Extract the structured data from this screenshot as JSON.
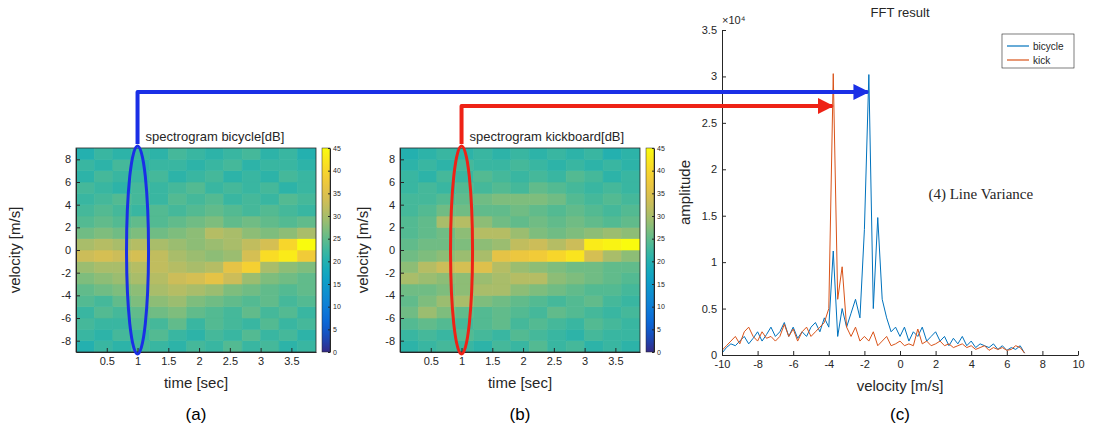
{
  "chart_data": [
    {
      "type": "heatmap",
      "panel": "(a)",
      "title": "spectrogram bicycle[dB]",
      "xlabel": "time [sec]",
      "ylabel": "velocity [m/s]",
      "x": [
        0.15,
        0.45,
        0.75,
        1.05,
        1.35,
        1.65,
        1.95,
        2.25,
        2.55,
        2.85,
        3.15,
        3.45,
        3.75
      ],
      "y": [
        -8.5,
        -7.5,
        -6.5,
        -5.5,
        -4.5,
        -3.5,
        -2.5,
        -1.5,
        -0.5,
        0.5,
        1.5,
        2.5,
        3.5,
        4.5,
        5.5,
        6.5,
        7.5,
        8.5
      ],
      "values": [
        [
          20,
          22,
          21,
          23,
          22,
          21,
          23,
          22,
          24,
          22,
          23,
          21,
          22
        ],
        [
          22,
          21,
          23,
          22,
          24,
          22,
          21,
          23,
          22,
          24,
          22,
          23,
          21
        ],
        [
          23,
          22,
          22,
          24,
          23,
          25,
          22,
          24,
          23,
          22,
          24,
          22,
          23
        ],
        [
          22,
          24,
          23,
          25,
          26,
          27,
          25,
          24,
          23,
          25,
          23,
          24,
          22
        ],
        [
          24,
          23,
          25,
          27,
          28,
          29,
          27,
          26,
          25,
          24,
          25,
          23,
          24
        ],
        [
          25,
          26,
          27,
          28,
          30,
          31,
          30,
          29,
          27,
          26,
          25,
          24,
          25
        ],
        [
          27,
          28,
          29,
          30,
          31,
          33,
          34,
          36,
          33,
          29,
          27,
          26,
          25
        ],
        [
          29,
          30,
          30,
          31,
          32,
          31,
          30,
          31,
          36,
          39,
          30,
          28,
          27
        ],
        [
          33,
          34,
          33,
          34,
          32,
          30,
          29,
          28,
          29,
          34,
          41,
          43,
          38
        ],
        [
          30,
          31,
          30,
          31,
          30,
          29,
          28,
          29,
          30,
          32,
          34,
          40,
          45
        ],
        [
          26,
          27,
          26,
          27,
          26,
          27,
          28,
          31,
          30,
          28,
          27,
          28,
          30
        ],
        [
          24,
          25,
          24,
          25,
          24,
          25,
          26,
          27,
          25,
          26,
          25,
          24,
          25
        ],
        [
          23,
          24,
          23,
          22,
          24,
          23,
          24,
          25,
          24,
          23,
          24,
          23,
          22
        ],
        [
          22,
          23,
          24,
          23,
          22,
          24,
          23,
          24,
          22,
          23,
          22,
          24,
          23
        ],
        [
          23,
          22,
          21,
          23,
          22,
          23,
          24,
          22,
          23,
          22,
          23,
          21,
          22
        ],
        [
          21,
          23,
          22,
          22,
          23,
          21,
          22,
          23,
          21,
          22,
          21,
          23,
          22
        ],
        [
          22,
          21,
          23,
          21,
          22,
          22,
          21,
          22,
          23,
          21,
          22,
          22,
          21
        ],
        [
          20,
          22,
          21,
          22,
          21,
          23,
          22,
          21,
          22,
          23,
          21,
          22,
          20
        ]
      ],
      "xlim": [
        0,
        3.9
      ],
      "ylim": [
        -9,
        9
      ],
      "xticks": [
        0.5,
        1,
        1.5,
        2,
        2.5,
        3,
        3.5
      ],
      "yticks": [
        -8,
        -6,
        -4,
        -2,
        0,
        2,
        4,
        6,
        8
      ],
      "colorbar": {
        "lim": [
          0,
          45
        ],
        "ticks": [
          0,
          5,
          10,
          15,
          20,
          25,
          30,
          35,
          40,
          45
        ]
      }
    },
    {
      "type": "heatmap",
      "panel": "(b)",
      "title": "spectrogram kickboard[dB]",
      "xlabel": "time [sec]",
      "ylabel": "velocity [m/s]",
      "x": [
        0.15,
        0.45,
        0.75,
        1.05,
        1.35,
        1.65,
        1.95,
        2.25,
        2.55,
        2.85,
        3.15,
        3.45,
        3.75
      ],
      "y": [
        -8.5,
        -7.5,
        -6.5,
        -5.5,
        -4.5,
        -3.5,
        -2.5,
        -1.5,
        -0.5,
        0.5,
        1.5,
        2.5,
        3.5,
        4.5,
        5.5,
        6.5,
        7.5,
        8.5
      ],
      "values": [
        [
          21,
          22,
          23,
          22,
          21,
          23,
          22,
          24,
          22,
          23,
          21,
          22,
          21
        ],
        [
          22,
          23,
          22,
          24,
          23,
          22,
          24,
          23,
          22,
          21,
          23,
          22,
          22
        ],
        [
          24,
          25,
          24,
          23,
          24,
          25,
          23,
          24,
          23,
          22,
          24,
          23,
          22
        ],
        [
          26,
          29,
          27,
          25,
          24,
          25,
          24,
          23,
          25,
          24,
          23,
          22,
          23
        ],
        [
          25,
          27,
          29,
          30,
          27,
          26,
          25,
          24,
          23,
          24,
          25,
          23,
          22
        ],
        [
          26,
          26,
          27,
          28,
          30,
          30,
          28,
          27,
          26,
          25,
          24,
          24,
          23
        ],
        [
          30,
          29,
          28,
          28,
          29,
          30,
          31,
          31,
          28,
          27,
          26,
          25,
          24
        ],
        [
          28,
          31,
          33,
          34,
          35,
          31,
          29,
          28,
          27,
          26,
          26,
          25,
          25
        ],
        [
          26,
          27,
          28,
          29,
          30,
          36,
          37,
          38,
          40,
          42,
          34,
          30,
          28
        ],
        [
          25,
          26,
          26,
          27,
          28,
          29,
          32,
          33,
          31,
          33,
          43,
          44,
          45
        ],
        [
          24,
          25,
          26,
          28,
          31,
          31,
          29,
          27,
          26,
          27,
          28,
          29,
          28
        ],
        [
          24,
          25,
          30,
          31,
          28,
          26,
          25,
          26,
          25,
          26,
          25,
          24,
          25
        ],
        [
          23,
          24,
          26,
          26,
          25,
          25,
          26,
          25,
          24,
          25,
          24,
          23,
          24
        ],
        [
          23,
          23,
          24,
          25,
          26,
          27,
          27,
          27,
          26,
          24,
          23,
          24,
          23
        ],
        [
          22,
          23,
          22,
          24,
          23,
          24,
          23,
          25,
          24,
          23,
          22,
          23,
          22
        ],
        [
          22,
          21,
          23,
          22,
          24,
          23,
          22,
          23,
          22,
          24,
          23,
          21,
          22
        ],
        [
          21,
          22,
          21,
          23,
          22,
          22,
          23,
          22,
          21,
          22,
          21,
          22,
          21
        ],
        [
          20,
          21,
          22,
          21,
          22,
          21,
          22,
          21,
          22,
          21,
          22,
          20,
          21
        ]
      ],
      "xlim": [
        0,
        3.9
      ],
      "ylim": [
        -9,
        9
      ],
      "xticks": [
        0.5,
        1,
        1.5,
        2,
        2.5,
        3,
        3.5
      ],
      "yticks": [
        -8,
        -6,
        -4,
        -2,
        0,
        2,
        4,
        6,
        8
      ],
      "colorbar": {
        "lim": [
          0,
          45
        ],
        "ticks": [
          0,
          5,
          10,
          15,
          20,
          25,
          30,
          35,
          40,
          45
        ]
      }
    },
    {
      "type": "line",
      "panel": "(c)",
      "title": "FFT result",
      "xlabel": "velocity [m/s]",
      "ylabel": "amplitude",
      "annotations": [
        "×10⁴",
        "(4) Line Variance"
      ],
      "x": [
        -10,
        -9.75,
        -9.5,
        -9.25,
        -9,
        -8.75,
        -8.5,
        -8.25,
        -8,
        -7.75,
        -7.5,
        -7.25,
        -7,
        -6.75,
        -6.5,
        -6.25,
        -6,
        -5.75,
        -5.5,
        -5.25,
        -5,
        -4.75,
        -4.5,
        -4.25,
        -4,
        -3.75,
        -3.5,
        -3.25,
        -3,
        -2.75,
        -2.5,
        -2.25,
        -2,
        -1.75,
        -1.5,
        -1.25,
        -1,
        -0.75,
        -0.5,
        -0.25,
        0,
        0.25,
        0.5,
        0.75,
        1,
        1.25,
        1.5,
        1.75,
        2,
        2.25,
        2.5,
        2.75,
        3,
        3.25,
        3.5,
        3.75,
        4,
        4.25,
        4.5,
        4.75,
        5,
        5.25,
        5.5,
        5.75,
        6,
        6.25,
        6.5,
        6.75,
        7
      ],
      "series": [
        {
          "name": "bicycle",
          "color": "#0072bd",
          "values": [
            0.02,
            0.08,
            0.12,
            0.1,
            0.15,
            0.2,
            0.12,
            0.18,
            0.25,
            0.15,
            0.22,
            0.3,
            0.2,
            0.25,
            0.35,
            0.2,
            0.3,
            0.18,
            0.25,
            0.2,
            0.3,
            0.35,
            0.25,
            0.4,
            0.3,
            1.12,
            0.2,
            0.5,
            0.3,
            0.45,
            0.6,
            0.4,
            1.35,
            3.02,
            0.5,
            1.48,
            0.6,
            0.4,
            0.25,
            0.3,
            0.2,
            0.3,
            0.15,
            0.25,
            0.2,
            0.3,
            0.15,
            0.2,
            0.25,
            0.15,
            0.2,
            0.1,
            0.18,
            0.12,
            0.2,
            0.1,
            0.15,
            0.08,
            0.12,
            0.1,
            0.08,
            0.12,
            0.06,
            0.1,
            0.05,
            0.08,
            0.06,
            0.1,
            0.02
          ]
        },
        {
          "name": "kick",
          "color": "#d95319",
          "values": [
            0.05,
            0.1,
            0.15,
            0.2,
            0.12,
            0.25,
            0.3,
            0.2,
            0.15,
            0.25,
            0.18,
            0.2,
            0.15,
            0.2,
            0.33,
            0.2,
            0.28,
            0.15,
            0.25,
            0.3,
            0.2,
            0.25,
            0.3,
            0.35,
            0.5,
            3.03,
            0.6,
            0.95,
            0.3,
            0.2,
            0.3,
            0.15,
            0.2,
            0.15,
            0.25,
            0.1,
            0.15,
            0.2,
            0.1,
            0.12,
            0.15,
            0.1,
            0.12,
            0.1,
            0.28,
            0.12,
            0.15,
            0.1,
            0.12,
            0.15,
            0.1,
            0.12,
            0.08,
            0.1,
            0.12,
            0.08,
            0.1,
            0.06,
            0.08,
            0.1,
            0.05,
            0.08,
            0.06,
            0.08,
            0.05,
            0.06,
            0.1,
            0.08,
            0.02
          ]
        }
      ],
      "xlim": [
        -10,
        10
      ],
      "ylim": [
        0,
        3.5
      ],
      "xticks": [
        -10,
        -8,
        -6,
        -4,
        -2,
        0,
        2,
        4,
        6,
        8,
        10
      ],
      "yticks": [
        0,
        0.5,
        1,
        1.5,
        2,
        2.5,
        3,
        3.5
      ],
      "grid": false,
      "legend": "top-right"
    }
  ]
}
